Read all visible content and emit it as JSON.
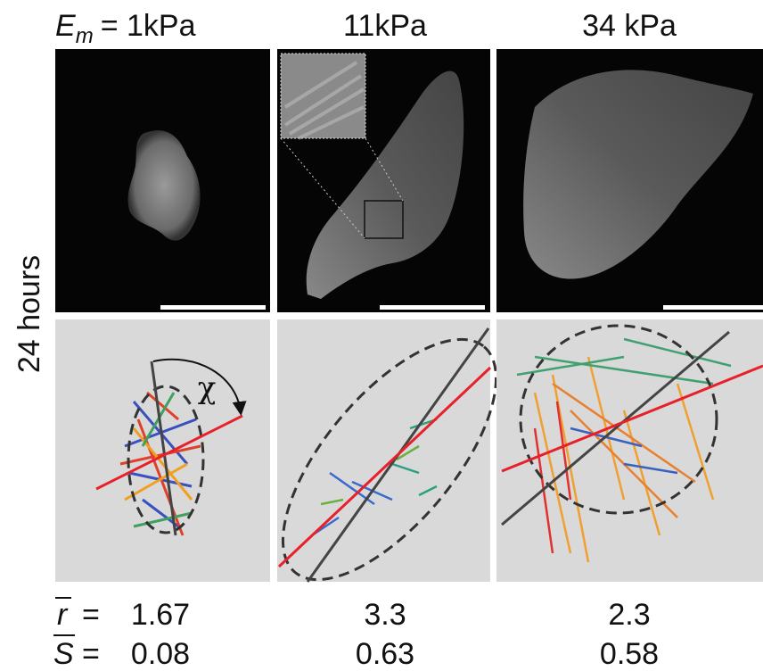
{
  "columns": [
    {
      "symbol": "E",
      "subscript": "m",
      "label": "= 1kPa"
    },
    {
      "label": "11kPa"
    },
    {
      "label": "34 kPa"
    }
  ],
  "row_label": "24 hours",
  "angle_symbol": "χ",
  "metrics": [
    {
      "symbol": "r",
      "equals": "=",
      "values": [
        "1.67",
        "3.3",
        "2.3"
      ]
    },
    {
      "symbol": "S",
      "equals": "=",
      "values": [
        "0.08",
        "0.63",
        "0.58"
      ]
    }
  ]
}
